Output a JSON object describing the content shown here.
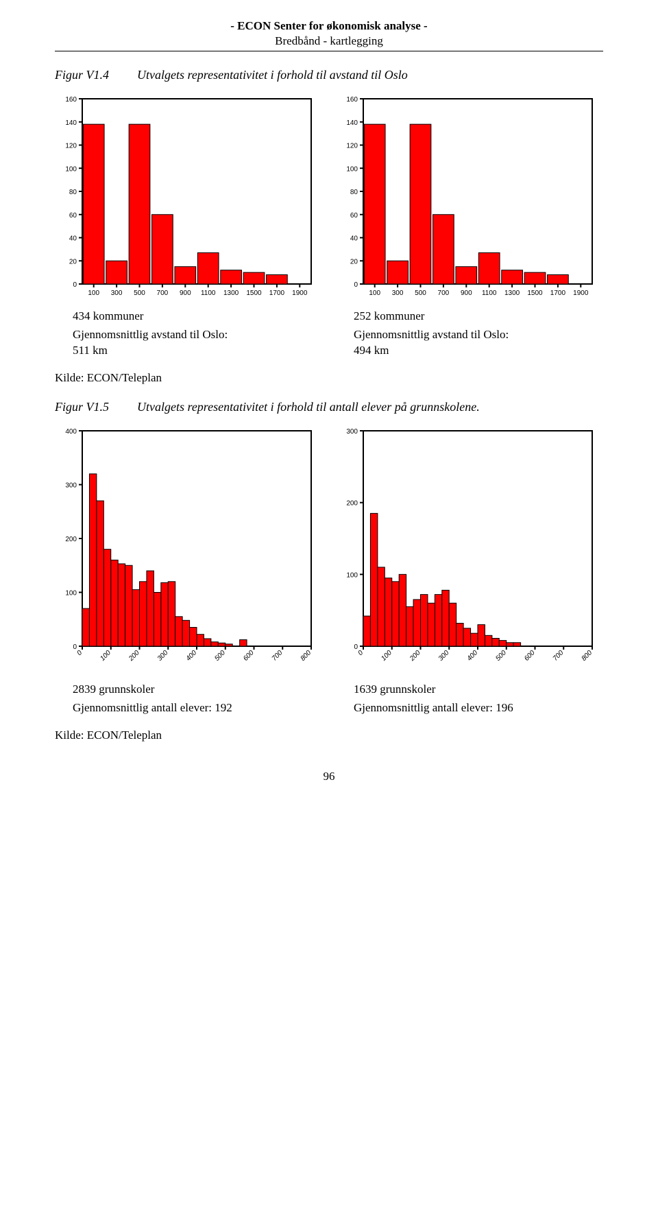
{
  "header": {
    "title": "- ECON Senter for økonomisk analyse -",
    "subtitle": "Bredbånd - kartlegging"
  },
  "figure1": {
    "num": "Figur V1.4",
    "caption": "Utvalgets representativitet i forhold til avstand til Oslo"
  },
  "chart_a": {
    "type": "bar",
    "ylim": [
      0,
      160
    ],
    "ytick_step": 20,
    "xticks": [
      100,
      300,
      500,
      700,
      900,
      1100,
      1300,
      1500,
      1700,
      1900
    ],
    "categories": [
      100,
      300,
      500,
      700,
      900,
      1100,
      1300,
      1500,
      1700,
      1900
    ],
    "values": [
      138,
      20,
      138,
      60,
      15,
      27,
      12,
      10,
      8,
      0
    ],
    "bar_color": "#ff0000",
    "bar_border": "#000000",
    "tick_fontsize": 10,
    "plot_border": "#000000",
    "bg": "#ffffff"
  },
  "chart_b": {
    "type": "bar",
    "ylim": [
      0,
      160
    ],
    "ytick_step": 20,
    "xticks": [
      100,
      300,
      500,
      700,
      900,
      1100,
      1300,
      1500,
      1700,
      1900
    ],
    "categories": [
      100,
      300,
      500,
      700,
      900,
      1100,
      1300,
      1500,
      1700,
      1900
    ],
    "values": [
      138,
      20,
      138,
      60,
      15,
      27,
      12,
      10,
      8,
      0
    ],
    "bar_color": "#ff0000",
    "bar_border": "#000000",
    "tick_fontsize": 10,
    "plot_border": "#000000",
    "bg": "#ffffff"
  },
  "desc1": {
    "left": {
      "count": "434 kommuner",
      "line1": "Gjennomsnittlig avstand til Oslo:",
      "line2": "511 km"
    },
    "right": {
      "count": "252 kommuner",
      "line1": "Gjennomsnittlig avstand til Oslo:",
      "line2": "494 km"
    }
  },
  "source1": "Kilde:  ECON/Teleplan",
  "figure2": {
    "num": "Figur V1.5",
    "caption": "Utvalgets representativitet i forhold til antall elever på grunnskolene."
  },
  "chart_c": {
    "type": "histogram",
    "ylim": [
      0,
      400
    ],
    "ytick_step": 100,
    "xticks": [
      0,
      100,
      200,
      300,
      400,
      500,
      600,
      700,
      800
    ],
    "bin_width": 25,
    "values": [
      70,
      320,
      270,
      180,
      160,
      153,
      150,
      105,
      120,
      140,
      100,
      118,
      120,
      55,
      48,
      35,
      22,
      14,
      8,
      6,
      4,
      0,
      12,
      0,
      0,
      0,
      0,
      0,
      0,
      0,
      0,
      0
    ],
    "bar_color": "#ff0000",
    "bar_border": "#000000",
    "tick_fontsize": 10,
    "xtick_rotate": -45,
    "plot_border": "#000000",
    "bg": "#ffffff"
  },
  "chart_d": {
    "type": "histogram",
    "ylim": [
      0,
      300
    ],
    "ytick_step": 100,
    "xticks": [
      0,
      100,
      200,
      300,
      400,
      500,
      600,
      700,
      800
    ],
    "bin_width": 25,
    "values": [
      42,
      185,
      110,
      95,
      90,
      100,
      55,
      65,
      72,
      60,
      72,
      78,
      60,
      32,
      25,
      18,
      30,
      15,
      11,
      8,
      5,
      5,
      0,
      0,
      0,
      0,
      0,
      0,
      0,
      0,
      0,
      0
    ],
    "bar_color": "#ff0000",
    "bar_border": "#000000",
    "tick_fontsize": 10,
    "xtick_rotate": -45,
    "plot_border": "#000000",
    "bg": "#ffffff"
  },
  "desc2": {
    "left": {
      "count": "2839 grunnskoler",
      "line1": "Gjennomsnittlig antall elever: 192"
    },
    "right": {
      "count": "1639 grunnskoler",
      "line1": "Gjennomsnittlig antall elever: 196"
    }
  },
  "source2": "Kilde:  ECON/Teleplan",
  "page_number": "96"
}
